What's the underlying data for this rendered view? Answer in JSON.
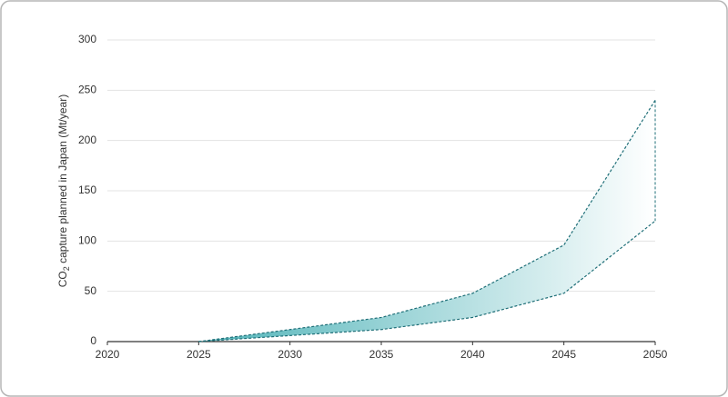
{
  "chart_data": {
    "type": "range-area",
    "ylabel": {
      "main": "CO",
      "subscript": "2",
      "rest": " capture planned in Japan (Mt/year)"
    },
    "x": [
      2025,
      2030,
      2035,
      2040,
      2045,
      2050
    ],
    "series": [
      {
        "color": "#1f6f78",
        "values": [
          0,
          12,
          24,
          48,
          96,
          240
        ]
      },
      {
        "color": "#1f6f78",
        "values": [
          0,
          6,
          12,
          24,
          48,
          120
        ]
      }
    ],
    "fill_colors": [
      "#4fb3b8",
      "#ffffff"
    ],
    "xlim": [
      2020,
      2050
    ],
    "xticks": [
      2020,
      2025,
      2030,
      2035,
      2040,
      2045,
      2050
    ],
    "ylim": [
      0,
      300
    ],
    "yticks": [
      0,
      50,
      100,
      150,
      200,
      250,
      300
    ],
    "grid": true
  }
}
